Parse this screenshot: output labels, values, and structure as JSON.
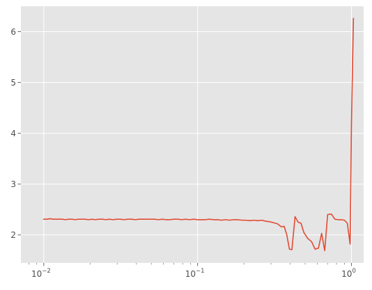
{
  "chart_data": {
    "type": "line",
    "title": "",
    "xlabel": "",
    "ylabel": "",
    "x_scale": "log",
    "xlim": [
      0.0071,
      1.2
    ],
    "ylim": [
      1.45,
      6.5
    ],
    "grid": true,
    "background": "#e5e5e5",
    "grid_color": "#ffffff",
    "line_color": "#e24a33",
    "x_ticks": [
      {
        "value": 0.01,
        "base": "10",
        "exp": "−2"
      },
      {
        "value": 0.1,
        "base": "10",
        "exp": "−1"
      },
      {
        "value": 1,
        "base": "10",
        "exp": "0"
      }
    ],
    "y_ticks": [
      {
        "value": 2,
        "label": "2"
      },
      {
        "value": 3,
        "label": "3"
      },
      {
        "value": 4,
        "label": "4"
      },
      {
        "value": 5,
        "label": "5"
      },
      {
        "value": 6,
        "label": "6"
      }
    ],
    "series": [
      {
        "x": [
          0.01,
          0.0105,
          0.011,
          0.0115,
          0.012,
          0.0126,
          0.0132,
          0.0138,
          0.0145,
          0.0152,
          0.016,
          0.0168,
          0.0176,
          0.0185,
          0.0195,
          0.0205,
          0.0216,
          0.0228,
          0.024,
          0.0253,
          0.0267,
          0.0282,
          0.0298,
          0.0315,
          0.0333,
          0.0352,
          0.0372,
          0.0393,
          0.0415,
          0.044,
          0.0466,
          0.0494,
          0.0524,
          0.0556,
          0.0589,
          0.0624,
          0.0661,
          0.07,
          0.0743,
          0.0788,
          0.0836,
          0.0887,
          0.0941,
          0.0998,
          0.106,
          0.112,
          0.119,
          0.127,
          0.135,
          0.143,
          0.152,
          0.161,
          0.171,
          0.182,
          0.193,
          0.205,
          0.218,
          0.232,
          0.246,
          0.261,
          0.277,
          0.294,
          0.312,
          0.33,
          0.35,
          0.365,
          0.38,
          0.395,
          0.41,
          0.43,
          0.45,
          0.47,
          0.49,
          0.52,
          0.55,
          0.58,
          0.61,
          0.64,
          0.67,
          0.7,
          0.74,
          0.78,
          0.82,
          0.86,
          0.9,
          0.94,
          0.98,
          1.0,
          1.03
        ],
        "y": [
          2.31,
          2.31,
          2.32,
          2.31,
          2.31,
          2.31,
          2.31,
          2.3,
          2.31,
          2.31,
          2.3,
          2.31,
          2.31,
          2.31,
          2.3,
          2.31,
          2.3,
          2.31,
          2.31,
          2.3,
          2.31,
          2.3,
          2.31,
          2.31,
          2.3,
          2.31,
          2.31,
          2.3,
          2.31,
          2.31,
          2.31,
          2.31,
          2.31,
          2.3,
          2.31,
          2.3,
          2.3,
          2.31,
          2.31,
          2.3,
          2.31,
          2.3,
          2.31,
          2.3,
          2.3,
          2.3,
          2.31,
          2.3,
          2.3,
          2.29,
          2.3,
          2.29,
          2.3,
          2.3,
          2.29,
          2.29,
          2.28,
          2.29,
          2.28,
          2.29,
          2.27,
          2.26,
          2.24,
          2.22,
          2.16,
          2.17,
          2.0,
          1.72,
          1.71,
          2.36,
          2.25,
          2.23,
          2.05,
          1.93,
          1.87,
          1.72,
          1.74,
          2.03,
          1.69,
          2.4,
          2.41,
          2.31,
          2.3,
          2.3,
          2.29,
          2.23,
          1.82,
          4.2,
          6.26
        ]
      }
    ]
  }
}
